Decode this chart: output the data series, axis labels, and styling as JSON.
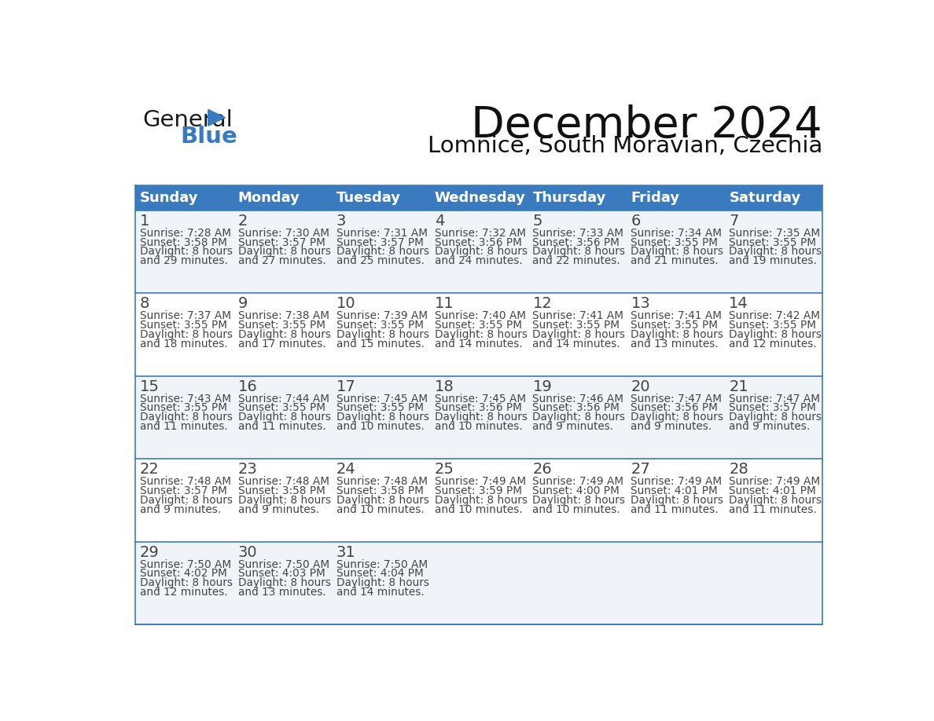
{
  "title": "December 2024",
  "subtitle": "Lomnice, South Moravian, Czechia",
  "header_color": "#3A7BBF",
  "header_text_color": "#FFFFFF",
  "cell_bg_even": "#F0F4F8",
  "cell_bg_odd": "#FFFFFF",
  "border_color": "#3A7BBF",
  "text_color": "#444444",
  "day_headers": [
    "Sunday",
    "Monday",
    "Tuesday",
    "Wednesday",
    "Thursday",
    "Friday",
    "Saturday"
  ],
  "weeks": [
    [
      {
        "day": 1,
        "sunrise": "7:28 AM",
        "sunset": "3:58 PM",
        "dl1": "8 hours",
        "dl2": "and 29 minutes."
      },
      {
        "day": 2,
        "sunrise": "7:30 AM",
        "sunset": "3:57 PM",
        "dl1": "8 hours",
        "dl2": "and 27 minutes."
      },
      {
        "day": 3,
        "sunrise": "7:31 AM",
        "sunset": "3:57 PM",
        "dl1": "8 hours",
        "dl2": "and 25 minutes."
      },
      {
        "day": 4,
        "sunrise": "7:32 AM",
        "sunset": "3:56 PM",
        "dl1": "8 hours",
        "dl2": "and 24 minutes."
      },
      {
        "day": 5,
        "sunrise": "7:33 AM",
        "sunset": "3:56 PM",
        "dl1": "8 hours",
        "dl2": "and 22 minutes."
      },
      {
        "day": 6,
        "sunrise": "7:34 AM",
        "sunset": "3:55 PM",
        "dl1": "8 hours",
        "dl2": "and 21 minutes."
      },
      {
        "day": 7,
        "sunrise": "7:35 AM",
        "sunset": "3:55 PM",
        "dl1": "8 hours",
        "dl2": "and 19 minutes."
      }
    ],
    [
      {
        "day": 8,
        "sunrise": "7:37 AM",
        "sunset": "3:55 PM",
        "dl1": "8 hours",
        "dl2": "and 18 minutes."
      },
      {
        "day": 9,
        "sunrise": "7:38 AM",
        "sunset": "3:55 PM",
        "dl1": "8 hours",
        "dl2": "and 17 minutes."
      },
      {
        "day": 10,
        "sunrise": "7:39 AM",
        "sunset": "3:55 PM",
        "dl1": "8 hours",
        "dl2": "and 15 minutes."
      },
      {
        "day": 11,
        "sunrise": "7:40 AM",
        "sunset": "3:55 PM",
        "dl1": "8 hours",
        "dl2": "and 14 minutes."
      },
      {
        "day": 12,
        "sunrise": "7:41 AM",
        "sunset": "3:55 PM",
        "dl1": "8 hours",
        "dl2": "and 14 minutes."
      },
      {
        "day": 13,
        "sunrise": "7:41 AM",
        "sunset": "3:55 PM",
        "dl1": "8 hours",
        "dl2": "and 13 minutes."
      },
      {
        "day": 14,
        "sunrise": "7:42 AM",
        "sunset": "3:55 PM",
        "dl1": "8 hours",
        "dl2": "and 12 minutes."
      }
    ],
    [
      {
        "day": 15,
        "sunrise": "7:43 AM",
        "sunset": "3:55 PM",
        "dl1": "8 hours",
        "dl2": "and 11 minutes."
      },
      {
        "day": 16,
        "sunrise": "7:44 AM",
        "sunset": "3:55 PM",
        "dl1": "8 hours",
        "dl2": "and 11 minutes."
      },
      {
        "day": 17,
        "sunrise": "7:45 AM",
        "sunset": "3:55 PM",
        "dl1": "8 hours",
        "dl2": "and 10 minutes."
      },
      {
        "day": 18,
        "sunrise": "7:45 AM",
        "sunset": "3:56 PM",
        "dl1": "8 hours",
        "dl2": "and 10 minutes."
      },
      {
        "day": 19,
        "sunrise": "7:46 AM",
        "sunset": "3:56 PM",
        "dl1": "8 hours",
        "dl2": "and 9 minutes."
      },
      {
        "day": 20,
        "sunrise": "7:47 AM",
        "sunset": "3:56 PM",
        "dl1": "8 hours",
        "dl2": "and 9 minutes."
      },
      {
        "day": 21,
        "sunrise": "7:47 AM",
        "sunset": "3:57 PM",
        "dl1": "8 hours",
        "dl2": "and 9 minutes."
      }
    ],
    [
      {
        "day": 22,
        "sunrise": "7:48 AM",
        "sunset": "3:57 PM",
        "dl1": "8 hours",
        "dl2": "and 9 minutes."
      },
      {
        "day": 23,
        "sunrise": "7:48 AM",
        "sunset": "3:58 PM",
        "dl1": "8 hours",
        "dl2": "and 9 minutes."
      },
      {
        "day": 24,
        "sunrise": "7:48 AM",
        "sunset": "3:58 PM",
        "dl1": "8 hours",
        "dl2": "and 10 minutes."
      },
      {
        "day": 25,
        "sunrise": "7:49 AM",
        "sunset": "3:59 PM",
        "dl1": "8 hours",
        "dl2": "and 10 minutes."
      },
      {
        "day": 26,
        "sunrise": "7:49 AM",
        "sunset": "4:00 PM",
        "dl1": "8 hours",
        "dl2": "and 10 minutes."
      },
      {
        "day": 27,
        "sunrise": "7:49 AM",
        "sunset": "4:01 PM",
        "dl1": "8 hours",
        "dl2": "and 11 minutes."
      },
      {
        "day": 28,
        "sunrise": "7:49 AM",
        "sunset": "4:01 PM",
        "dl1": "8 hours",
        "dl2": "and 11 minutes."
      }
    ],
    [
      {
        "day": 29,
        "sunrise": "7:50 AM",
        "sunset": "4:02 PM",
        "dl1": "8 hours",
        "dl2": "and 12 minutes."
      },
      {
        "day": 30,
        "sunrise": "7:50 AM",
        "sunset": "4:03 PM",
        "dl1": "8 hours",
        "dl2": "and 13 minutes."
      },
      {
        "day": 31,
        "sunrise": "7:50 AM",
        "sunset": "4:04 PM",
        "dl1": "8 hours",
        "dl2": "and 14 minutes."
      },
      null,
      null,
      null,
      null
    ]
  ],
  "logo_color_general": "#1a1a1a",
  "logo_color_blue": "#3A7BBF",
  "logo_triangle_color": "#3A7BBF"
}
